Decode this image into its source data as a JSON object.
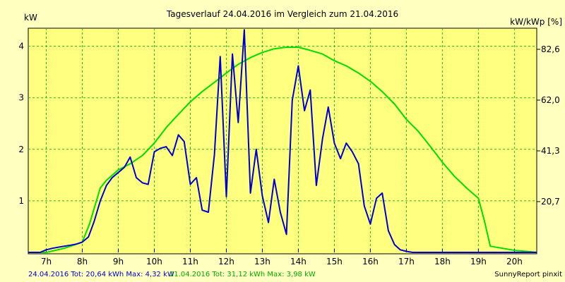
{
  "chart_data": {
    "type": "line",
    "title": "Tagesverlauf 24.04.2016 im Vergleich zum 21.04.2016",
    "ylabel_left": "kW",
    "ylabel_right": "kW/kWp [%]",
    "ylim": [
      0,
      4.35
    ],
    "xlim": [
      6.5,
      20.62
    ],
    "x_ticks": [
      {
        "x": 7,
        "label": "7h"
      },
      {
        "x": 8,
        "label": "8h"
      },
      {
        "x": 9,
        "label": "9h"
      },
      {
        "x": 10,
        "label": "10h"
      },
      {
        "x": 11,
        "label": "11h"
      },
      {
        "x": 12,
        "label": "12h"
      },
      {
        "x": 13,
        "label": "13h"
      },
      {
        "x": 14,
        "label": "14h"
      },
      {
        "x": 15,
        "label": "15h"
      },
      {
        "x": 16,
        "label": "16h"
      },
      {
        "x": 17,
        "label": "17h"
      },
      {
        "x": 18,
        "label": "18h"
      },
      {
        "x": 19,
        "label": "19h"
      },
      {
        "x": 20,
        "label": "20h"
      }
    ],
    "y_ticks_left": [
      {
        "y": 1,
        "label": "1"
      },
      {
        "y": 2,
        "label": "2"
      },
      {
        "y": 3,
        "label": "3"
      },
      {
        "y": 4,
        "label": "4"
      }
    ],
    "y_ticks_right": [
      {
        "y": 0.985,
        "label": "20,7"
      },
      {
        "y": 1.97,
        "label": "41,3"
      },
      {
        "y": 2.955,
        "label": "62,0"
      },
      {
        "y": 3.94,
        "label": "82,6"
      }
    ],
    "grid": true,
    "series": [
      {
        "name": "24.04.2016",
        "color": "#0000CC",
        "x": [
          6.5,
          6.83,
          7.0,
          7.17,
          7.33,
          7.5,
          7.67,
          7.83,
          8.0,
          8.17,
          8.33,
          8.5,
          8.67,
          8.83,
          9.0,
          9.17,
          9.33,
          9.5,
          9.67,
          9.83,
          10.0,
          10.17,
          10.33,
          10.5,
          10.67,
          10.83,
          11.0,
          11.17,
          11.33,
          11.5,
          11.67,
          11.83,
          12.0,
          12.17,
          12.33,
          12.5,
          12.67,
          12.83,
          13.0,
          13.17,
          13.33,
          13.5,
          13.67,
          13.83,
          14.0,
          14.17,
          14.33,
          14.5,
          14.67,
          14.83,
          15.0,
          15.17,
          15.33,
          15.5,
          15.67,
          15.83,
          16.0,
          16.17,
          16.33,
          16.5,
          16.67,
          16.83,
          17.0,
          17.17,
          17.33,
          17.5,
          17.67,
          17.83,
          18.0,
          18.17,
          18.33,
          18.5,
          18.67,
          18.83,
          19.0,
          19.17,
          19.33,
          19.5,
          19.67,
          19.83,
          20.0,
          20.17,
          20.33,
          20.62
        ],
        "values": [
          0.0,
          0.0,
          0.05,
          0.08,
          0.1,
          0.12,
          0.14,
          0.16,
          0.2,
          0.3,
          0.6,
          1.0,
          1.3,
          1.45,
          1.55,
          1.65,
          1.85,
          1.45,
          1.35,
          1.32,
          1.95,
          2.02,
          2.05,
          1.88,
          2.28,
          2.15,
          1.32,
          1.45,
          0.82,
          0.78,
          1.9,
          3.8,
          1.08,
          3.85,
          2.52,
          4.32,
          1.15,
          2.0,
          1.1,
          0.58,
          1.42,
          0.78,
          0.35,
          2.95,
          3.62,
          2.75,
          3.15,
          1.3,
          2.2,
          2.82,
          2.12,
          1.82,
          2.12,
          1.95,
          1.72,
          0.9,
          0.55,
          1.05,
          1.15,
          0.42,
          0.15,
          0.05,
          0.02,
          0.0,
          0.0,
          0.0,
          0.0,
          0.0,
          0.0,
          0.0,
          0.0,
          0.0,
          0.0,
          0.0,
          0.0,
          0.0,
          0.0,
          0.0,
          0.0,
          0.0,
          0.0,
          0.0,
          0.0,
          0.0
        ]
      },
      {
        "name": "21.04.2016",
        "color": "#00DD00",
        "x": [
          6.5,
          7.0,
          7.5,
          8.0,
          8.2,
          8.5,
          8.67,
          9.0,
          9.33,
          9.67,
          10.0,
          10.33,
          10.67,
          11.0,
          11.33,
          11.67,
          12.0,
          12.33,
          12.67,
          13.0,
          13.33,
          13.67,
          14.0,
          14.33,
          14.67,
          15.0,
          15.33,
          15.67,
          16.0,
          16.33,
          16.67,
          17.0,
          17.33,
          17.67,
          18.0,
          18.33,
          18.67,
          19.0,
          19.17,
          19.33,
          19.67,
          20.0,
          20.33,
          20.62
        ],
        "values": [
          0.0,
          0.0,
          0.08,
          0.2,
          0.55,
          1.25,
          1.4,
          1.6,
          1.72,
          1.88,
          2.12,
          2.42,
          2.68,
          2.92,
          3.12,
          3.3,
          3.48,
          3.65,
          3.78,
          3.88,
          3.95,
          3.98,
          3.98,
          3.92,
          3.85,
          3.72,
          3.62,
          3.48,
          3.32,
          3.12,
          2.88,
          2.58,
          2.35,
          2.05,
          1.75,
          1.48,
          1.25,
          1.05,
          0.6,
          0.12,
          0.08,
          0.04,
          0.02,
          0.0
        ]
      }
    ]
  },
  "footer": {
    "series1_text": "24.04.2016 Tot: 20,64 kWh Max: 4,32 kW",
    "series2_text": "21.04.2016 Tot: 31,12 kWh Max: 3,98 kW",
    "credit": "SunnyReport pinxit",
    "series1_color": "#0000CC",
    "series2_color": "#00AA00"
  },
  "colors": {
    "background": "#FFFFC0",
    "plot_background": "#FFFF80",
    "grid": "#22BB22"
  }
}
